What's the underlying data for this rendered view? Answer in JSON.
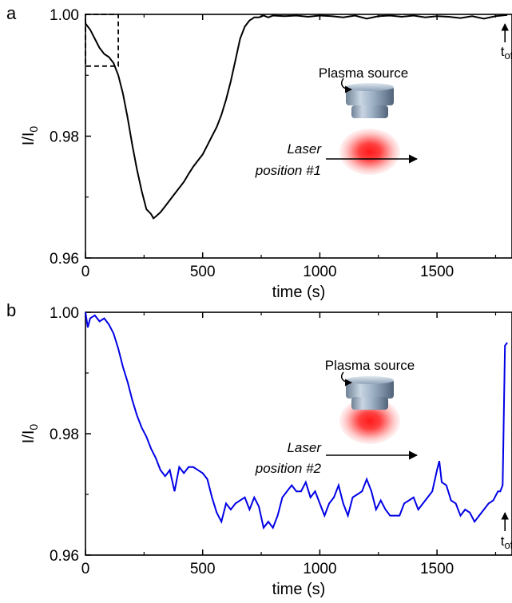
{
  "chart_data": [
    {
      "panel": "a",
      "type": "line",
      "xlabel": "time (s)",
      "ylabel": "I/I",
      "ylabel_sub": "0",
      "xlim": [
        0,
        1800
      ],
      "ylim": [
        0.96,
        1.0
      ],
      "xticks": [
        "0",
        "500",
        "1000",
        "1500"
      ],
      "yticks": [
        "0.96",
        "0.98",
        "1.00"
      ],
      "annotations": {
        "source_label": "Plasma source",
        "laser_line1": "Laser",
        "laser_line2": "position #1",
        "toff_main": "t",
        "toff_sub": "off"
      },
      "toff_x": 1790,
      "inset_box_x": [
        0,
        140
      ],
      "inset_box_y": [
        0.9915,
        1.0
      ],
      "line_color": "#000000",
      "series": [
        {
          "x": [
            0,
            20,
            40,
            60,
            80,
            100,
            120,
            140,
            160,
            180,
            200,
            220,
            240,
            260,
            280,
            290,
            300,
            320,
            340,
            360,
            380,
            400,
            420,
            440,
            460,
            480,
            500,
            520,
            540,
            560,
            580,
            600,
            620,
            640,
            660,
            680,
            700,
            720,
            740,
            760,
            780,
            800,
            850,
            900,
            950,
            1000,
            1050,
            1100,
            1150,
            1200,
            1250,
            1300,
            1350,
            1400,
            1450,
            1500,
            1550,
            1600,
            1650,
            1700,
            1750,
            1800
          ],
          "y": [
            0.9985,
            0.9975,
            0.996,
            0.9945,
            0.9935,
            0.993,
            0.992,
            0.99,
            0.987,
            0.983,
            0.9785,
            0.9745,
            0.971,
            0.968,
            0.9672,
            0.9665,
            0.9668,
            0.9675,
            0.9685,
            0.9695,
            0.9705,
            0.9715,
            0.9725,
            0.9738,
            0.975,
            0.976,
            0.977,
            0.9785,
            0.98,
            0.9815,
            0.9835,
            0.986,
            0.989,
            0.9925,
            0.996,
            0.998,
            0.999,
            0.9995,
            0.9995,
            0.9998,
            0.9995,
            0.9998,
            0.9997,
            0.9998,
            0.9996,
            0.9998,
            0.9997,
            0.9995,
            0.9998,
            0.9993,
            0.9997,
            0.9998,
            0.9996,
            0.9998,
            0.9995,
            0.9997,
            0.9996,
            0.9994,
            0.9997,
            0.9993,
            0.9997,
            0.9999
          ]
        }
      ]
    },
    {
      "panel": "b",
      "type": "line",
      "xlabel": "time (s)",
      "ylabel": "I/I",
      "ylabel_sub": "0",
      "xlim": [
        0,
        1800
      ],
      "ylim": [
        0.96,
        1.0
      ],
      "xticks": [
        "0",
        "500",
        "1000",
        "1500"
      ],
      "yticks": [
        "0.96",
        "0.98",
        "1.00"
      ],
      "annotations": {
        "source_label": "Plasma source",
        "laser_line1": "Laser",
        "laser_line2": "position #2",
        "toff_main": "t",
        "toff_sub": "off"
      },
      "toff_x": 1790,
      "line_color": "#0000e6",
      "series": [
        {
          "x": [
            0,
            10,
            20,
            40,
            60,
            80,
            100,
            120,
            140,
            160,
            180,
            200,
            220,
            240,
            260,
            280,
            300,
            320,
            340,
            360,
            380,
            400,
            420,
            440,
            460,
            480,
            500,
            520,
            540,
            560,
            580,
            600,
            620,
            640,
            660,
            680,
            700,
            720,
            740,
            760,
            780,
            800,
            820,
            840,
            860,
            880,
            900,
            920,
            940,
            960,
            980,
            1000,
            1020,
            1040,
            1060,
            1080,
            1100,
            1120,
            1140,
            1160,
            1180,
            1200,
            1220,
            1240,
            1260,
            1280,
            1300,
            1320,
            1340,
            1360,
            1380,
            1400,
            1420,
            1440,
            1460,
            1480,
            1500,
            1510,
            1520,
            1540,
            1560,
            1580,
            1600,
            1620,
            1640,
            1660,
            1680,
            1700,
            1720,
            1740,
            1760,
            1770,
            1780,
            1790,
            1800
          ],
          "y": [
            1.0,
            0.9975,
            0.999,
            0.9995,
            0.9985,
            0.999,
            0.998,
            0.9965,
            0.994,
            0.991,
            0.9885,
            0.9855,
            0.983,
            0.981,
            0.9795,
            0.9775,
            0.976,
            0.974,
            0.973,
            0.974,
            0.9705,
            0.9745,
            0.9735,
            0.9745,
            0.9745,
            0.974,
            0.9735,
            0.9725,
            0.9695,
            0.967,
            0.9655,
            0.9685,
            0.9675,
            0.9685,
            0.969,
            0.9695,
            0.9675,
            0.9695,
            0.968,
            0.9645,
            0.9655,
            0.9645,
            0.9665,
            0.9695,
            0.9705,
            0.9715,
            0.9705,
            0.9705,
            0.972,
            0.9695,
            0.9705,
            0.9685,
            0.9665,
            0.9685,
            0.9695,
            0.9715,
            0.9685,
            0.9665,
            0.9695,
            0.97,
            0.9705,
            0.9725,
            0.9705,
            0.9675,
            0.969,
            0.9675,
            0.9665,
            0.9665,
            0.9665,
            0.9685,
            0.969,
            0.9695,
            0.9675,
            0.9685,
            0.9695,
            0.9705,
            0.974,
            0.9755,
            0.972,
            0.9715,
            0.969,
            0.9685,
            0.9665,
            0.9675,
            0.967,
            0.9655,
            0.9665,
            0.9675,
            0.9685,
            0.969,
            0.9705,
            0.9705,
            0.9715,
            0.9945,
            0.995
          ]
        }
      ]
    }
  ]
}
